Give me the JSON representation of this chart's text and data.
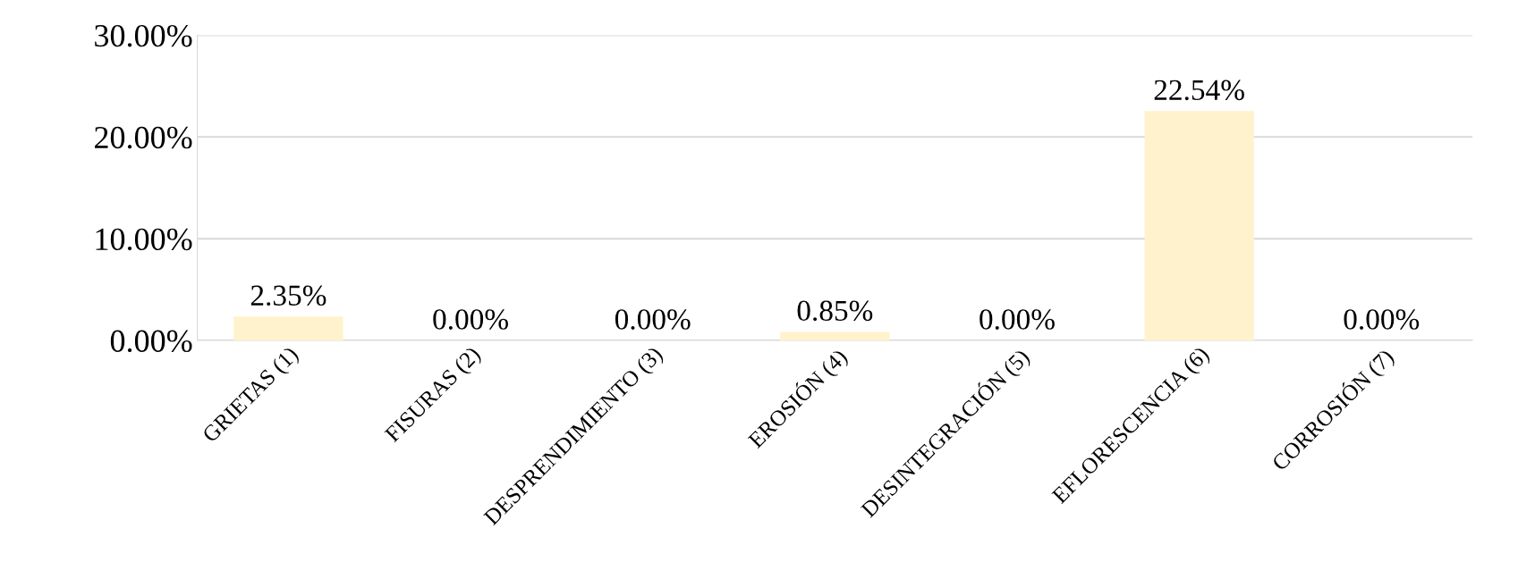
{
  "chart_data": {
    "type": "bar",
    "categories": [
      "GRIETAS (1)",
      "FISURAS (2)",
      "DESPRENDIMIENTO (3)",
      "EROSIÓN (4)",
      "DESINTEGRACIÓN (5)",
      "EFLORESCENCIA (6)",
      "CORROSIÓN (7)"
    ],
    "values": [
      2.35,
      0,
      0,
      0.85,
      0,
      22.54,
      0
    ],
    "value_labels": [
      "2.35%",
      "0.00%",
      "0.00%",
      "0.85%",
      "0.00%",
      "22.54%",
      "0.00%"
    ],
    "color": "#fff2cc",
    "ylim": [
      0,
      30
    ],
    "yticks": [
      {
        "value": 0,
        "label": "0.00%"
      },
      {
        "value": 10,
        "label": "10.00%"
      },
      {
        "value": 20,
        "label": "20.00%"
      },
      {
        "value": 30,
        "label": "30.00%"
      }
    ],
    "grid": "y"
  }
}
